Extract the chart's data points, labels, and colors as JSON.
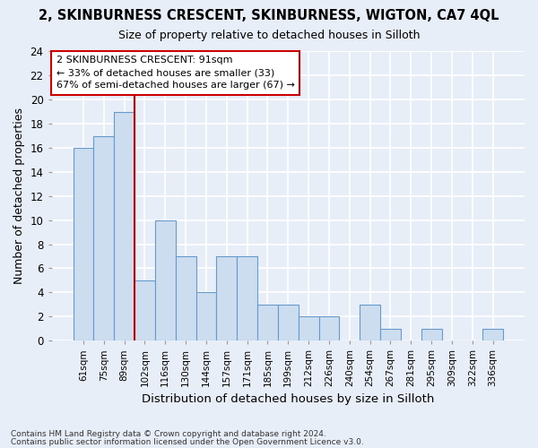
{
  "title": "2, SKINBURNESS CRESCENT, SKINBURNESS, WIGTON, CA7 4QL",
  "subtitle": "Size of property relative to detached houses in Silloth",
  "xlabel": "Distribution of detached houses by size in Silloth",
  "ylabel": "Number of detached properties",
  "categories": [
    "61sqm",
    "75sqm",
    "89sqm",
    "102sqm",
    "116sqm",
    "130sqm",
    "144sqm",
    "157sqm",
    "171sqm",
    "185sqm",
    "199sqm",
    "212sqm",
    "226sqm",
    "240sqm",
    "254sqm",
    "267sqm",
    "281sqm",
    "295sqm",
    "309sqm",
    "322sqm",
    "336sqm"
  ],
  "values": [
    16,
    17,
    19,
    5,
    10,
    7,
    4,
    7,
    7,
    3,
    3,
    2,
    2,
    0,
    3,
    1,
    0,
    1,
    0,
    0,
    1
  ],
  "bar_color": "#ccddef",
  "bar_edge_color": "#6699cc",
  "bar_edge_width": 0.8,
  "property_line_x": 2.5,
  "property_line_color": "#cc0000",
  "ylim": [
    0,
    24
  ],
  "yticks": [
    0,
    2,
    4,
    6,
    8,
    10,
    12,
    14,
    16,
    18,
    20,
    22,
    24
  ],
  "annotation_line1": "2 SKINBURNESS CRESCENT: 91sqm",
  "annotation_line2": "← 33% of detached houses are smaller (33)",
  "annotation_line3": "67% of semi-detached houses are larger (67) →",
  "annotation_box_color": "#ffffff",
  "annotation_box_edge": "#cc0000",
  "footer1": "Contains HM Land Registry data © Crown copyright and database right 2024.",
  "footer2": "Contains public sector information licensed under the Open Government Licence v3.0.",
  "background_color": "#e8eef7",
  "grid_color": "#c8d4e8"
}
